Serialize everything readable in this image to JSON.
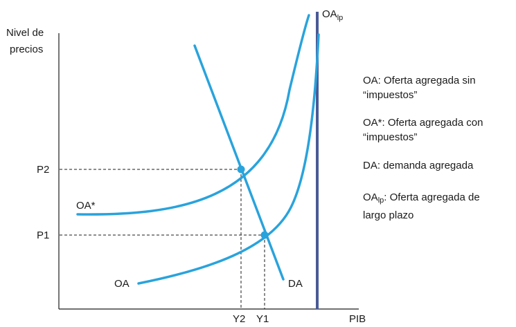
{
  "axes": {
    "y_label_line1": "Nivel de",
    "y_label_line2": "precios",
    "x_label": "PIB",
    "y_ticks": [
      "P2",
      "P1"
    ],
    "x_ticks": [
      "Y2",
      "Y1"
    ]
  },
  "curves": {
    "oa": "OA",
    "oa_star": "OA*",
    "da": "DA",
    "oa_lp_main": "OA",
    "oa_lp_sub": "lp"
  },
  "legend": [
    {
      "line1": "OA: Oferta agregada sin",
      "line2": "“impuestos”"
    },
    {
      "line1": "OA*: Oferta agregada con",
      "line2": "“impuestos”"
    },
    {
      "line1": "DA: demanda agregada",
      "line2": ""
    },
    {
      "pre": "OA",
      "sub": "lp",
      "rest": ": Oferta agregada de",
      "line2": "largo plazo"
    }
  ],
  "colors": {
    "curve": "#29a3dc",
    "lp_line": "#4a5a96",
    "axis": "#1a1a1a",
    "guide": "#1a1a1a"
  }
}
